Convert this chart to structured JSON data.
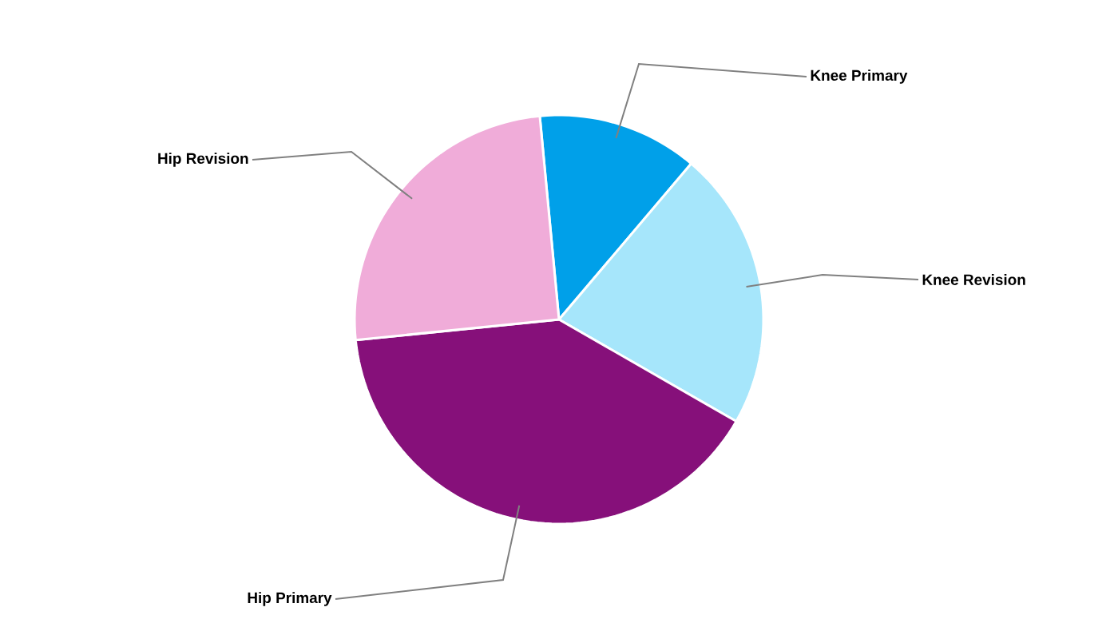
{
  "chart_data": {
    "type": "pie",
    "categories": [
      "Knee Primary",
      "Knee Revision",
      "Hip Primary",
      "Hip Revision"
    ],
    "values": [
      12.7,
      22.1,
      40.1,
      25.1
    ],
    "colors": [
      "#00a0e9",
      "#a6e6fb",
      "#86107a",
      "#f0acd9"
    ]
  }
}
